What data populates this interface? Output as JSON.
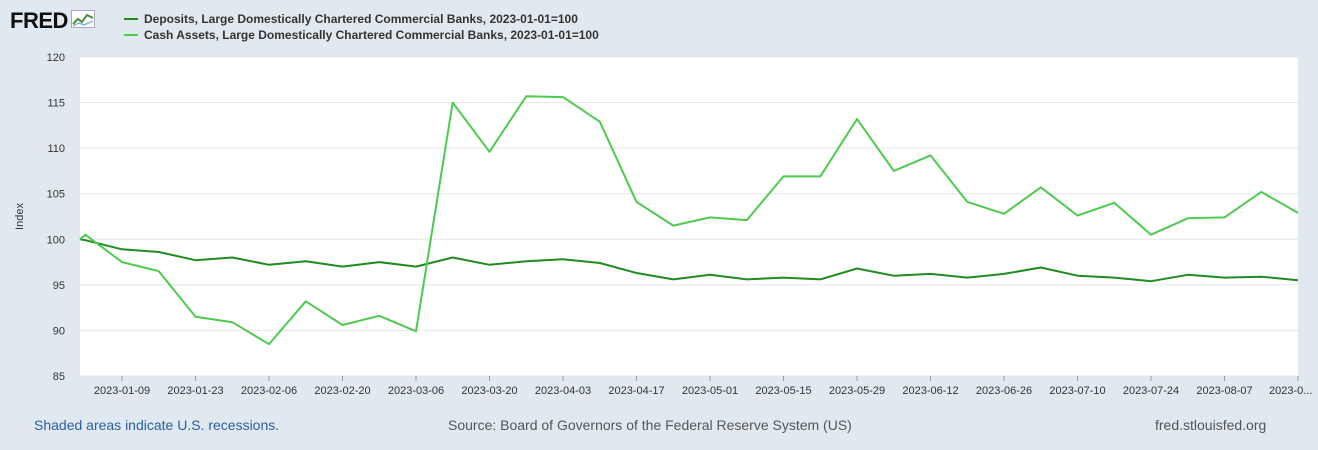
{
  "brand": {
    "name": "FRED",
    "icon": "fred-chart-icon"
  },
  "footer": {
    "recession_note": "Shaded areas indicate U.S. recessions.",
    "source": "Source: Board of Governors of the Federal Reserve System (US)",
    "site": "fred.stlouisfed.org"
  },
  "chart_data": {
    "type": "line",
    "title": "",
    "xlabel": "",
    "ylabel": "Index",
    "ylim": [
      85,
      120
    ],
    "yticks": [
      85,
      90,
      95,
      100,
      105,
      110,
      115,
      120
    ],
    "xtick_labels": [
      "2023-01-09",
      "2023-01-23",
      "2023-02-06",
      "2023-02-20",
      "2023-03-06",
      "2023-03-20",
      "2023-04-03",
      "2023-04-17",
      "2023-05-01",
      "2023-05-15",
      "2023-05-29",
      "2023-06-12",
      "2023-06-26",
      "2023-07-10",
      "2023-07-24",
      "2023-08-07",
      "2023-0..."
    ],
    "grid": true,
    "legend": "top-left",
    "x": [
      "2023-01-01",
      "2023-01-02",
      "2023-01-09",
      "2023-01-16",
      "2023-01-23",
      "2023-01-30",
      "2023-02-06",
      "2023-02-13",
      "2023-02-20",
      "2023-02-27",
      "2023-03-06",
      "2023-03-13",
      "2023-03-20",
      "2023-03-27",
      "2023-04-03",
      "2023-04-10",
      "2023-04-17",
      "2023-04-24",
      "2023-05-01",
      "2023-05-08",
      "2023-05-15",
      "2023-05-22",
      "2023-05-29",
      "2023-06-05",
      "2023-06-12",
      "2023-06-19",
      "2023-06-26",
      "2023-07-03",
      "2023-07-10",
      "2023-07-17",
      "2023-07-24",
      "2023-07-31",
      "2023-08-07",
      "2023-08-14",
      "2023-08-21"
    ],
    "series": [
      {
        "name": "Deposits, Large Domestically Chartered Commercial Banks, 2023-01-01=100",
        "color": "#1e8c1e",
        "values": [
          100.0,
          99.9,
          98.9,
          98.6,
          97.7,
          98.0,
          97.2,
          97.6,
          97.0,
          97.5,
          97.0,
          98.0,
          97.2,
          97.6,
          97.8,
          97.4,
          96.3,
          95.6,
          96.1,
          95.6,
          95.8,
          95.6,
          96.8,
          96.0,
          96.2,
          95.8,
          96.2,
          96.9,
          96.0,
          95.8,
          95.4,
          96.1,
          95.8,
          95.9,
          95.5
        ]
      },
      {
        "name": "Cash Assets, Large Domestically Chartered Commercial Banks, 2023-01-01=100",
        "color": "#4ecb4e",
        "values": [
          100.0,
          100.5,
          97.5,
          96.5,
          91.5,
          90.9,
          88.5,
          93.2,
          90.6,
          91.6,
          89.9,
          115.0,
          109.6,
          115.7,
          115.6,
          112.9,
          104.1,
          101.5,
          102.4,
          102.1,
          106.9,
          106.9,
          113.2,
          107.5,
          109.2,
          104.1,
          102.8,
          105.7,
          102.6,
          104.0,
          100.5,
          102.3,
          102.4,
          105.2,
          102.9
        ]
      }
    ]
  }
}
